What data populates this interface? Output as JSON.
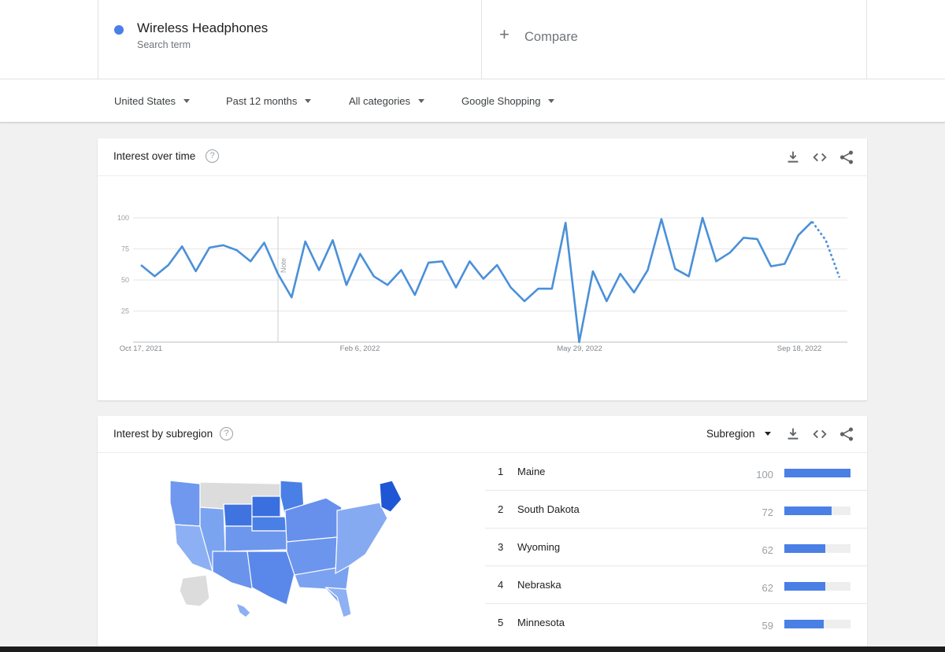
{
  "term": {
    "name": "Wireless Headphones",
    "subtitle": "Search term",
    "color": "#4a7fe5"
  },
  "compare": {
    "label": "Compare",
    "icon": "plus-icon"
  },
  "filters": [
    {
      "label": "United States"
    },
    {
      "label": "Past 12 months"
    },
    {
      "label": "All categories"
    },
    {
      "label": "Google Shopping"
    }
  ],
  "interest_over_time": {
    "title": "Interest over time",
    "help": "?",
    "tools": [
      "download-icon",
      "embed-icon",
      "share-icon"
    ],
    "note_label": "Note"
  },
  "chart_data": {
    "type": "line",
    "x_tick_labels": [
      "Oct 17, 2021",
      "Feb 6, 2022",
      "May 29, 2022",
      "Sep 18, 2022"
    ],
    "y_ticks": [
      25,
      50,
      75,
      100
    ],
    "ylim": [
      0,
      100
    ],
    "grid": true,
    "series": [
      {
        "color": "#4a90d9",
        "values": [
          62,
          53,
          62,
          77,
          57,
          76,
          78,
          74,
          65,
          80,
          55,
          36,
          81,
          58,
          82,
          46,
          71,
          53,
          46,
          58,
          38,
          64,
          65,
          44,
          65,
          51,
          62,
          44,
          33,
          43,
          43,
          96,
          0,
          57,
          33,
          55,
          40,
          58,
          99,
          59,
          53,
          100,
          65,
          72,
          84,
          83,
          61,
          63,
          86,
          97,
          82,
          52
        ],
        "partial_last_points": 2
      }
    ]
  },
  "interest_by_subregion": {
    "title": "Interest by subregion",
    "help": "?",
    "selector": "Subregion",
    "tools": [
      "download-icon",
      "embed-icon",
      "share-icon"
    ],
    "ranking": [
      {
        "rank": "1",
        "name": "Maine",
        "value": 100
      },
      {
        "rank": "2",
        "name": "South Dakota",
        "value": 72
      },
      {
        "rank": "3",
        "name": "Wyoming",
        "value": 62
      },
      {
        "rank": "4",
        "name": "Nebraska",
        "value": 62
      },
      {
        "rank": "5",
        "name": "Minnesota",
        "value": 59
      }
    ]
  }
}
